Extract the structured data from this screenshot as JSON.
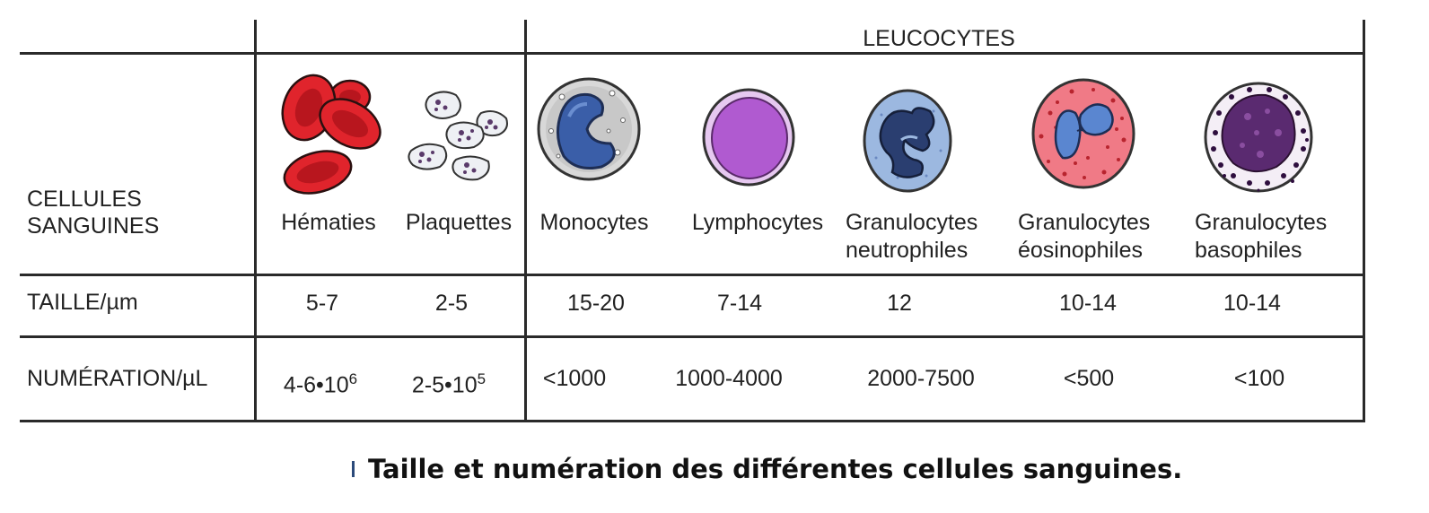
{
  "table": {
    "group_header": "LEUCOCYTES",
    "row_labels": {
      "cells_line1": "CELLULES",
      "cells_line2": "SANGUINES",
      "size": "TAILLE/µm",
      "count": "NUMÉRATION/µL"
    },
    "columns": [
      {
        "name_line1": "Hématies",
        "name_line2": "",
        "icon": "red-blood-cells-icon",
        "size": "5-7",
        "count_base": "4-6•10",
        "count_exp": "6"
      },
      {
        "name_line1": "Plaquettes",
        "name_line2": "",
        "icon": "platelets-icon",
        "size": "2-5",
        "count_base": "2-5•10",
        "count_exp": "5"
      },
      {
        "name_line1": "Monocytes",
        "name_line2": "",
        "icon": "monocyte-icon",
        "size": "15-20",
        "count_base": "<1000",
        "count_exp": ""
      },
      {
        "name_line1": "Lymphocytes",
        "name_line2": "",
        "icon": "lymphocyte-icon",
        "size": "7-14",
        "count_base": "1000-4000",
        "count_exp": ""
      },
      {
        "name_line1": "Granulocytes",
        "name_line2": "neutrophiles",
        "icon": "neutrophil-icon",
        "size": "12",
        "count_base": "2000-7500",
        "count_exp": ""
      },
      {
        "name_line1": "Granulocytes",
        "name_line2": "éosinophiles",
        "icon": "eosinophil-icon",
        "size": "10-14",
        "count_base": "<500",
        "count_exp": ""
      },
      {
        "name_line1": "Granulocytes",
        "name_line2": "basophiles",
        "icon": "basophil-icon",
        "size": "10-14",
        "count_base": "<100",
        "count_exp": ""
      }
    ]
  },
  "caption": "Taille et numération des différentes cellules sanguines.",
  "colors": {
    "rbc": "#e0242c",
    "monocyte_nucleus": "#3a5ea8",
    "lymphocyte": "#b05ad0",
    "neutrophil_cyto": "#9cb8e0",
    "eosinophil_cyto": "#f07a86",
    "basophil": "#5a2a70"
  }
}
